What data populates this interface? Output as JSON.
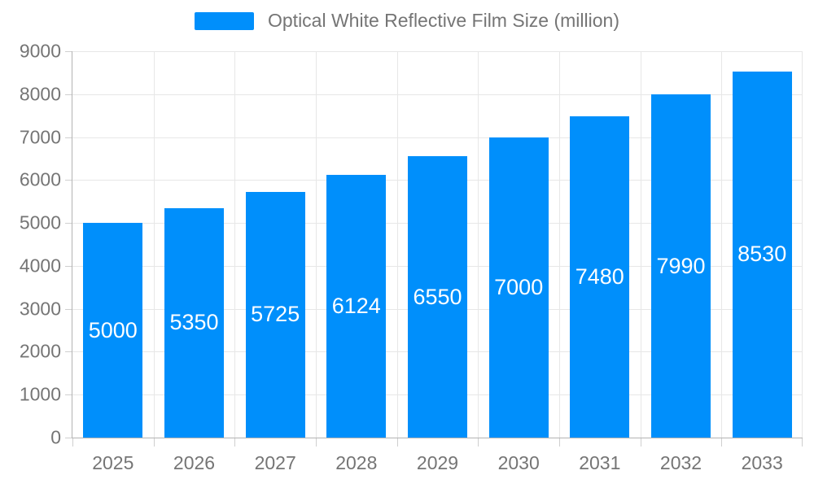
{
  "chart_data": {
    "type": "bar",
    "title": "Optical White Reflective Film Size (million)",
    "series_name": "Optical White Reflective Film Size (million)",
    "categories": [
      "2025",
      "2026",
      "2027",
      "2028",
      "2029",
      "2030",
      "2031",
      "2032",
      "2033"
    ],
    "values": [
      5000,
      5350,
      5725,
      6124,
      6550,
      7000,
      7480,
      7990,
      8530
    ],
    "xlabel": "",
    "ylabel": "",
    "ylim": [
      0,
      9000
    ],
    "ytick_step": 1000,
    "yticks": [
      0,
      1000,
      2000,
      3000,
      4000,
      5000,
      6000,
      7000,
      8000,
      9000
    ],
    "grid": true,
    "legend_position": "top",
    "bar_color": "#008FFB",
    "data_label_color": "#FFFFFF"
  },
  "colors": {
    "accent": "#008FFB",
    "axis_label": "#757575",
    "gridline": "#e7e7e7",
    "axis_line": "#b3b3b3",
    "tick": "#cfcfcf",
    "background": "#ffffff"
  }
}
